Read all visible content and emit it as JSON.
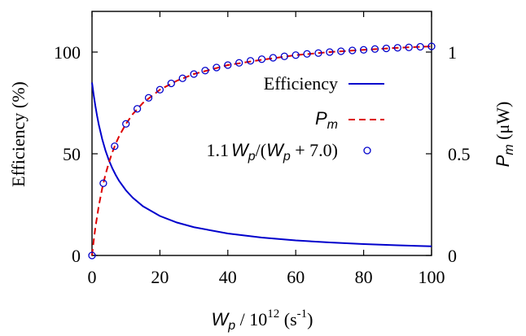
{
  "chart_data": {
    "type": "line",
    "xlabel": {
      "main": "W",
      "sub": "p",
      "mid": " / 10",
      "sup": "12",
      "unit_pre": " (s",
      "unit_sup": "-1",
      "unit_post": ")"
    },
    "ylabel_left": "Efficiency (%)",
    "ylabel_right": {
      "main": "P",
      "sub": "m",
      "unit": " (μW)"
    },
    "x_ticks": [
      "0",
      "20",
      "40",
      "60",
      "80",
      "100"
    ],
    "x_tick_values": [
      0,
      20,
      40,
      60,
      80,
      100
    ],
    "y_left_ticks": [
      "0",
      "50",
      "100"
    ],
    "y_left_tick_values": [
      0,
      50,
      100
    ],
    "y_right_ticks": [
      "0",
      "0.5",
      "1"
    ],
    "y_right_tick_values": [
      0,
      0.5,
      1
    ],
    "xlim": [
      0,
      100
    ],
    "ylim_left": [
      0,
      120
    ],
    "ylim_right": [
      0,
      1.2
    ],
    "grid": false,
    "legend_position": "right",
    "series": [
      {
        "name": "Efficiency",
        "axis": "left",
        "color": "#0000cc",
        "style": "solid",
        "x": [
          0,
          0.5,
          1,
          1.5,
          2,
          3,
          4,
          5,
          6,
          7,
          8,
          10,
          12,
          15,
          20,
          25,
          30,
          40,
          50,
          60,
          70,
          80,
          90,
          100
        ],
        "y": [
          85,
          78.8,
          73.4,
          68.6,
          64.3,
          57.2,
          51.4,
          46.7,
          42.8,
          39.5,
          36.6,
          32,
          28.4,
          24.2,
          19.4,
          16.2,
          13.9,
          10.8,
          8.8,
          7.4,
          6.4,
          5.6,
          5,
          4.5
        ]
      },
      {
        "name_main": "P",
        "name_sub": "m",
        "axis": "right",
        "color": "#dd0000",
        "style": "dashed",
        "x": [
          0,
          0.5,
          1,
          2,
          3,
          4,
          5,
          6,
          7,
          8,
          10,
          12,
          15,
          20,
          25,
          30,
          40,
          50,
          60,
          70,
          80,
          90,
          100
        ],
        "y": [
          0,
          0.073,
          0.138,
          0.244,
          0.33,
          0.4,
          0.458,
          0.508,
          0.55,
          0.587,
          0.647,
          0.695,
          0.75,
          0.815,
          0.859,
          0.892,
          0.936,
          0.962,
          0.985,
          1.0,
          1.011,
          1.021,
          1.028
        ]
      },
      {
        "name": "1.1 Wp/(Wp + 7.0)",
        "name_pre": "1.1",
        "name_w1": "W",
        "name_p1": "p",
        "name_mid": "/(",
        "name_w2": "W",
        "name_p2": "p",
        "name_post": " + 7.0)",
        "axis": "right",
        "color": "#0000cc",
        "style": "markers-open-circle",
        "x": [
          0,
          3.33,
          6.67,
          10,
          13.33,
          16.67,
          20,
          23.33,
          26.67,
          30,
          33.33,
          36.67,
          40,
          43.33,
          46.67,
          50,
          53.33,
          56.67,
          60,
          63.33,
          66.67,
          70,
          73.33,
          76.67,
          80,
          83.33,
          86.67,
          90,
          93.33,
          96.67,
          100
        ],
        "y": [
          0,
          0.355,
          0.537,
          0.647,
          0.721,
          0.775,
          0.815,
          0.846,
          0.871,
          0.892,
          0.909,
          0.924,
          0.936,
          0.947,
          0.957,
          0.965,
          0.972,
          0.979,
          0.985,
          0.991,
          0.995,
          1.0,
          1.004,
          1.008,
          1.011,
          1.015,
          1.018,
          1.021,
          1.023,
          1.026,
          1.028
        ]
      }
    ]
  }
}
